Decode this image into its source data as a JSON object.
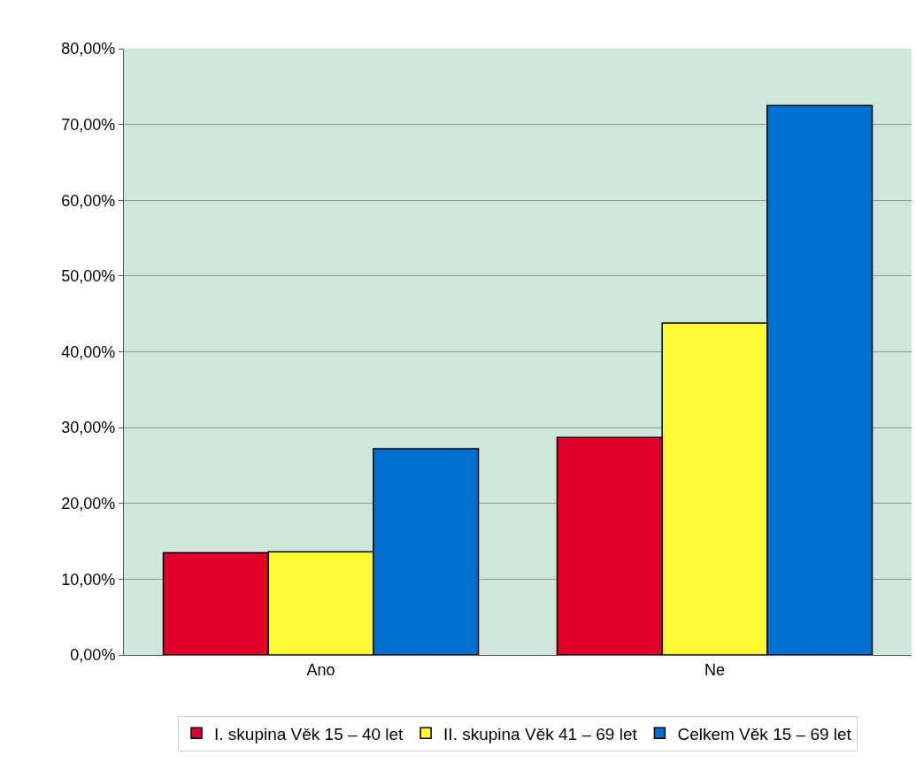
{
  "chart_data": {
    "type": "bar",
    "categories": [
      "Ano",
      "Ne"
    ],
    "series": [
      {
        "name": "I. skupina Věk 15 – 40 let",
        "color": "#e0002a",
        "values": [
          13.5,
          28.7
        ]
      },
      {
        "name": "II. skupina Věk 41 – 69 let",
        "color": "#fff933",
        "values": [
          13.6,
          43.8
        ]
      },
      {
        "name": "Celkem Věk 15 – 69 let",
        "color": "#0070d0",
        "values": [
          27.2,
          72.5
        ]
      }
    ],
    "ylim": [
      0,
      80
    ],
    "yticks": [
      {
        "value": 0,
        "label": "0,00%"
      },
      {
        "value": 10,
        "label": "10,00%"
      },
      {
        "value": 20,
        "label": "20,00%"
      },
      {
        "value": 30,
        "label": "30,00%"
      },
      {
        "value": 40,
        "label": "40,00%"
      },
      {
        "value": 50,
        "label": "50,00%"
      },
      {
        "value": 60,
        "label": "60,00%"
      },
      {
        "value": 70,
        "label": "70,00%"
      },
      {
        "value": 80,
        "label": "80,00%"
      }
    ],
    "grid": "y",
    "legend": "bottom"
  }
}
